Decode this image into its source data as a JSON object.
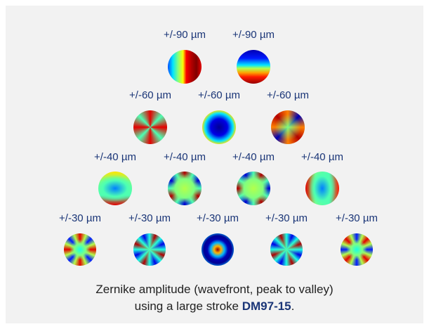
{
  "rows": [
    {
      "labels": [
        "+/-90 µm",
        "+/-90 µm"
      ],
      "modes": [
        "tip",
        "tilt"
      ]
    },
    {
      "labels": [
        "+/-60 µm",
        "+/-60 µm",
        "+/-60 µm"
      ],
      "modes": [
        "astig-45",
        "defocus",
        "astig-0"
      ]
    },
    {
      "labels": [
        "+/-40 µm",
        "+/-40 µm",
        "+/-40 µm",
        "+/-40 µm"
      ],
      "modes": [
        "trefoil-a",
        "coma-a",
        "coma-b",
        "trefoil-b"
      ]
    },
    {
      "labels": [
        "+/-30 µm",
        "+/-30 µm",
        "+/-30 µm",
        "+/-30 µm",
        "+/-30 µm"
      ],
      "modes": [
        "quadrafoil-a",
        "sec-astig-a",
        "spherical",
        "sec-astig-b",
        "quadrafoil-b"
      ]
    }
  ],
  "caption": {
    "line1": "Zernike amplitude (wavefront, peak to valley)",
    "line2_prefix": "using a large stroke ",
    "line2_product": "DM97-15",
    "line2_suffix": "."
  },
  "colors": {
    "label": "#1a3577",
    "panel_background": "#f2f2f2",
    "colormap": "jet"
  }
}
